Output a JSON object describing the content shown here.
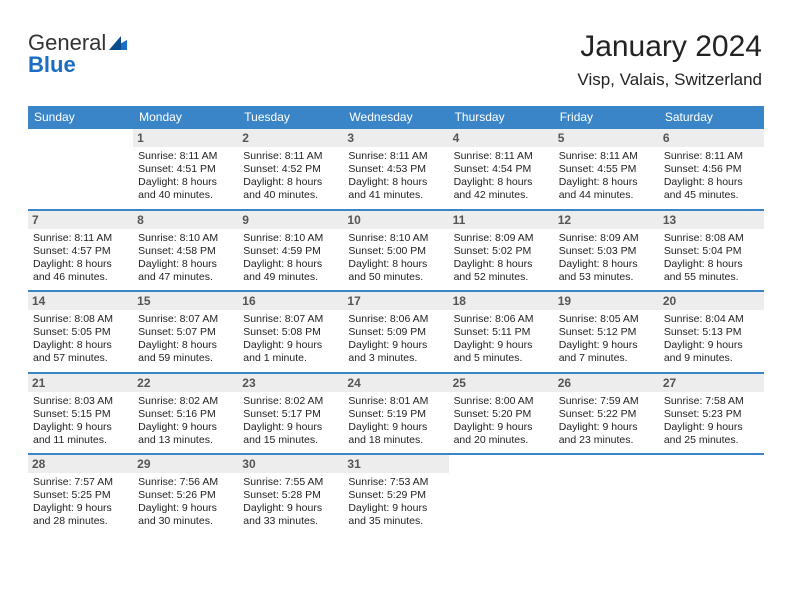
{
  "brand": {
    "part1": "General",
    "part2": "Blue"
  },
  "title": "January 2024",
  "location": "Visp, Valais, Switzerland",
  "colors": {
    "header_bg": "#3a85c8",
    "daynum_bg": "#ededed",
    "text": "#222222"
  },
  "day_names": [
    "Sunday",
    "Monday",
    "Tuesday",
    "Wednesday",
    "Thursday",
    "Friday",
    "Saturday"
  ],
  "weeks": [
    [
      null,
      {
        "n": "1",
        "sr": "Sunrise: 8:11 AM",
        "ss": "Sunset: 4:51 PM",
        "d1": "Daylight: 8 hours",
        "d2": "and 40 minutes."
      },
      {
        "n": "2",
        "sr": "Sunrise: 8:11 AM",
        "ss": "Sunset: 4:52 PM",
        "d1": "Daylight: 8 hours",
        "d2": "and 40 minutes."
      },
      {
        "n": "3",
        "sr": "Sunrise: 8:11 AM",
        "ss": "Sunset: 4:53 PM",
        "d1": "Daylight: 8 hours",
        "d2": "and 41 minutes."
      },
      {
        "n": "4",
        "sr": "Sunrise: 8:11 AM",
        "ss": "Sunset: 4:54 PM",
        "d1": "Daylight: 8 hours",
        "d2": "and 42 minutes."
      },
      {
        "n": "5",
        "sr": "Sunrise: 8:11 AM",
        "ss": "Sunset: 4:55 PM",
        "d1": "Daylight: 8 hours",
        "d2": "and 44 minutes."
      },
      {
        "n": "6",
        "sr": "Sunrise: 8:11 AM",
        "ss": "Sunset: 4:56 PM",
        "d1": "Daylight: 8 hours",
        "d2": "and 45 minutes."
      }
    ],
    [
      {
        "n": "7",
        "sr": "Sunrise: 8:11 AM",
        "ss": "Sunset: 4:57 PM",
        "d1": "Daylight: 8 hours",
        "d2": "and 46 minutes."
      },
      {
        "n": "8",
        "sr": "Sunrise: 8:10 AM",
        "ss": "Sunset: 4:58 PM",
        "d1": "Daylight: 8 hours",
        "d2": "and 47 minutes."
      },
      {
        "n": "9",
        "sr": "Sunrise: 8:10 AM",
        "ss": "Sunset: 4:59 PM",
        "d1": "Daylight: 8 hours",
        "d2": "and 49 minutes."
      },
      {
        "n": "10",
        "sr": "Sunrise: 8:10 AM",
        "ss": "Sunset: 5:00 PM",
        "d1": "Daylight: 8 hours",
        "d2": "and 50 minutes."
      },
      {
        "n": "11",
        "sr": "Sunrise: 8:09 AM",
        "ss": "Sunset: 5:02 PM",
        "d1": "Daylight: 8 hours",
        "d2": "and 52 minutes."
      },
      {
        "n": "12",
        "sr": "Sunrise: 8:09 AM",
        "ss": "Sunset: 5:03 PM",
        "d1": "Daylight: 8 hours",
        "d2": "and 53 minutes."
      },
      {
        "n": "13",
        "sr": "Sunrise: 8:08 AM",
        "ss": "Sunset: 5:04 PM",
        "d1": "Daylight: 8 hours",
        "d2": "and 55 minutes."
      }
    ],
    [
      {
        "n": "14",
        "sr": "Sunrise: 8:08 AM",
        "ss": "Sunset: 5:05 PM",
        "d1": "Daylight: 8 hours",
        "d2": "and 57 minutes."
      },
      {
        "n": "15",
        "sr": "Sunrise: 8:07 AM",
        "ss": "Sunset: 5:07 PM",
        "d1": "Daylight: 8 hours",
        "d2": "and 59 minutes."
      },
      {
        "n": "16",
        "sr": "Sunrise: 8:07 AM",
        "ss": "Sunset: 5:08 PM",
        "d1": "Daylight: 9 hours",
        "d2": "and 1 minute."
      },
      {
        "n": "17",
        "sr": "Sunrise: 8:06 AM",
        "ss": "Sunset: 5:09 PM",
        "d1": "Daylight: 9 hours",
        "d2": "and 3 minutes."
      },
      {
        "n": "18",
        "sr": "Sunrise: 8:06 AM",
        "ss": "Sunset: 5:11 PM",
        "d1": "Daylight: 9 hours",
        "d2": "and 5 minutes."
      },
      {
        "n": "19",
        "sr": "Sunrise: 8:05 AM",
        "ss": "Sunset: 5:12 PM",
        "d1": "Daylight: 9 hours",
        "d2": "and 7 minutes."
      },
      {
        "n": "20",
        "sr": "Sunrise: 8:04 AM",
        "ss": "Sunset: 5:13 PM",
        "d1": "Daylight: 9 hours",
        "d2": "and 9 minutes."
      }
    ],
    [
      {
        "n": "21",
        "sr": "Sunrise: 8:03 AM",
        "ss": "Sunset: 5:15 PM",
        "d1": "Daylight: 9 hours",
        "d2": "and 11 minutes."
      },
      {
        "n": "22",
        "sr": "Sunrise: 8:02 AM",
        "ss": "Sunset: 5:16 PM",
        "d1": "Daylight: 9 hours",
        "d2": "and 13 minutes."
      },
      {
        "n": "23",
        "sr": "Sunrise: 8:02 AM",
        "ss": "Sunset: 5:17 PM",
        "d1": "Daylight: 9 hours",
        "d2": "and 15 minutes."
      },
      {
        "n": "24",
        "sr": "Sunrise: 8:01 AM",
        "ss": "Sunset: 5:19 PM",
        "d1": "Daylight: 9 hours",
        "d2": "and 18 minutes."
      },
      {
        "n": "25",
        "sr": "Sunrise: 8:00 AM",
        "ss": "Sunset: 5:20 PM",
        "d1": "Daylight: 9 hours",
        "d2": "and 20 minutes."
      },
      {
        "n": "26",
        "sr": "Sunrise: 7:59 AM",
        "ss": "Sunset: 5:22 PM",
        "d1": "Daylight: 9 hours",
        "d2": "and 23 minutes."
      },
      {
        "n": "27",
        "sr": "Sunrise: 7:58 AM",
        "ss": "Sunset: 5:23 PM",
        "d1": "Daylight: 9 hours",
        "d2": "and 25 minutes."
      }
    ],
    [
      {
        "n": "28",
        "sr": "Sunrise: 7:57 AM",
        "ss": "Sunset: 5:25 PM",
        "d1": "Daylight: 9 hours",
        "d2": "and 28 minutes."
      },
      {
        "n": "29",
        "sr": "Sunrise: 7:56 AM",
        "ss": "Sunset: 5:26 PM",
        "d1": "Daylight: 9 hours",
        "d2": "and 30 minutes."
      },
      {
        "n": "30",
        "sr": "Sunrise: 7:55 AM",
        "ss": "Sunset: 5:28 PM",
        "d1": "Daylight: 9 hours",
        "d2": "and 33 minutes."
      },
      {
        "n": "31",
        "sr": "Sunrise: 7:53 AM",
        "ss": "Sunset: 5:29 PM",
        "d1": "Daylight: 9 hours",
        "d2": "and 35 minutes."
      },
      null,
      null,
      null
    ]
  ]
}
